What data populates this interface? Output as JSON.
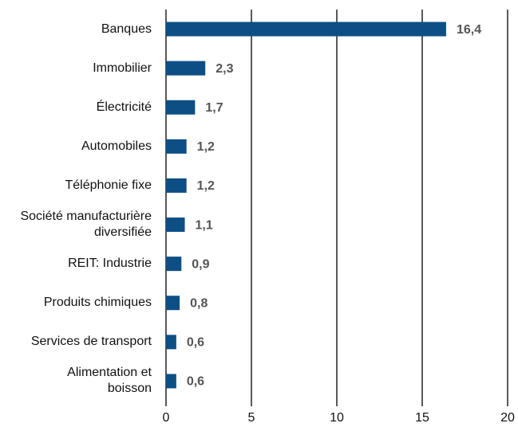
{
  "chart_data": {
    "type": "bar",
    "orientation": "horizontal",
    "categories": [
      "Banques",
      "Immobilier",
      "Électricité",
      "Automobiles",
      "Téléphonie fixe",
      "Société manufacturière\ndiversifiée",
      "REIT: Industrie",
      "Produits chimiques",
      "Services de transport",
      "Alimentation et\nboisson"
    ],
    "values": [
      16.4,
      2.3,
      1.7,
      1.2,
      1.2,
      1.1,
      0.9,
      0.8,
      0.6,
      0.6
    ],
    "value_labels": [
      "16,4",
      "2,3",
      "1,7",
      "1,2",
      "1,2",
      "1,1",
      "0,9",
      "0,8",
      "0,6",
      "0,6"
    ],
    "color": "#0d4f85",
    "xlim": [
      0,
      20
    ],
    "xticks": [
      0,
      5,
      10,
      15,
      20
    ],
    "grid": true
  }
}
